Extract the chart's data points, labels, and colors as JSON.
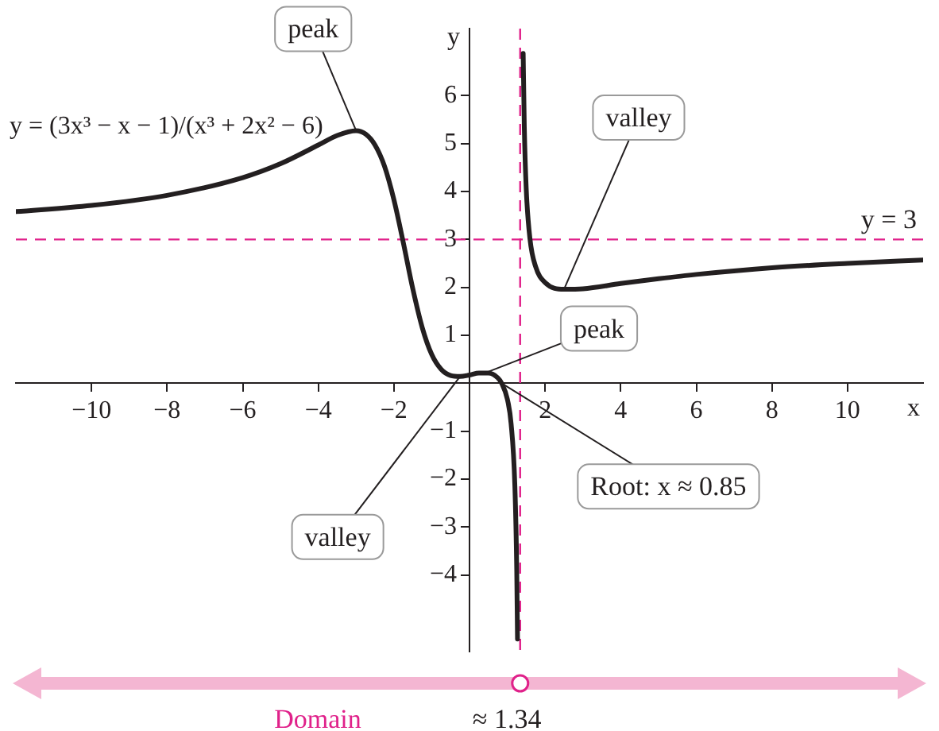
{
  "chart_data": {
    "type": "line",
    "xlabel": "x",
    "ylabel": "y",
    "x": [
      -12,
      -10,
      -8,
      -6,
      -5,
      -4,
      -3.5,
      -3,
      -2.75,
      -2.5,
      -2.25,
      -2,
      -1.75,
      -1.5,
      -1.25,
      -1,
      -0.75,
      -0.5,
      -0.25,
      0,
      0.25,
      0.5,
      0.75,
      0.85,
      1,
      1.1,
      1.2,
      1.25,
      1.27,
      1.34,
      1.42,
      1.45,
      1.5,
      1.6,
      1.75,
      2,
      2.5,
      3,
      4,
      5,
      6,
      8,
      10,
      12
    ],
    "series": [
      {
        "color": "#231f20",
        "values": [
          3.58,
          3.71,
          3.92,
          4.29,
          4.58,
          4.97,
          5.17,
          5.27,
          5.2,
          4.97,
          4.53,
          3.83,
          2.93,
          1.97,
          1.16,
          0.6,
          0.29,
          0.16,
          0.14,
          0.17,
          0.21,
          0.21,
          0.11,
          0,
          -0.33,
          -0.84,
          -2.14,
          -3.92,
          -5.34,
          null,
          6.88,
          5.34,
          4.07,
          3.01,
          2.43,
          2.1,
          1.96,
          1.97,
          2.08,
          2.18,
          2.27,
          2.41,
          2.5,
          2.57
        ]
      }
    ],
    "xlim": [
      -12,
      12
    ],
    "ylim": [
      -5.6,
      7.4
    ],
    "xticks": [
      -10,
      -8,
      -6,
      -4,
      -2,
      2,
      4,
      6,
      8,
      10
    ],
    "yticks": [
      -4,
      -3,
      -2,
      -1,
      1,
      2,
      3,
      4,
      5,
      6
    ],
    "marker": "none",
    "line_style": "solid",
    "ref_lines": [
      {
        "axis": "y",
        "value": 3,
        "label": "y = 3",
        "color": "#e0218a",
        "line_style": "dashed"
      },
      {
        "axis": "x",
        "value": 1.34,
        "label": "≈ 1.34",
        "color": "#e0218a",
        "line_style": "dashed"
      }
    ],
    "annotations": [
      "y = (3x³ − x − 1)/(x³ + 2x² − 6)",
      {
        "text": "peak",
        "x": -3,
        "y": 5.27
      },
      {
        "text": "valley",
        "x": 2.5,
        "y": 1.96
      },
      {
        "text": "peak",
        "x": 0.4,
        "y": 0.21
      },
      {
        "text": "valley",
        "x": -0.25,
        "y": 0.14
      },
      {
        "text": "Root: x ≈ 0.85",
        "x": 0.85,
        "y": 0
      },
      "Domain"
    ]
  }
}
